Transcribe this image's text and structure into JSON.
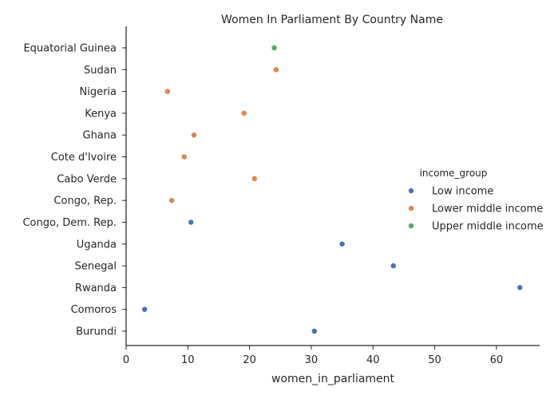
{
  "chart_data": {
    "type": "scatter",
    "title": "Women In Parliament By Country Name",
    "xlabel": "women_in_parliament",
    "ylabel": "",
    "xlim": [
      0,
      67
    ],
    "xticks": [
      0,
      10,
      20,
      30,
      40,
      50,
      60
    ],
    "grid": false,
    "legend_position": "right",
    "legend_title": "income_group",
    "categories": [
      "Equatorial Guinea",
      "Sudan",
      "Nigeria",
      "Kenya",
      "Ghana",
      "Cote d'Ivoire",
      "Cabo Verde",
      "Congo, Rep.",
      "Congo, Dem. Rep.",
      "Uganda",
      "Senegal",
      "Rwanda",
      "Comoros",
      "Burundi"
    ],
    "series": [
      {
        "name": "Low income",
        "color": "#4c72b0",
        "points": [
          {
            "y": "Congo, Dem. Rep.",
            "x": 10.5
          },
          {
            "y": "Uganda",
            "x": 35.0
          },
          {
            "y": "Senegal",
            "x": 43.3
          },
          {
            "y": "Rwanda",
            "x": 63.8
          },
          {
            "y": "Comoros",
            "x": 3.0
          },
          {
            "y": "Burundi",
            "x": 30.5
          }
        ]
      },
      {
        "name": "Lower middle income",
        "color": "#dd8452",
        "points": [
          {
            "y": "Sudan",
            "x": 24.3
          },
          {
            "y": "Nigeria",
            "x": 6.7
          },
          {
            "y": "Kenya",
            "x": 19.1
          },
          {
            "y": "Ghana",
            "x": 11.0
          },
          {
            "y": "Cote d'Ivoire",
            "x": 9.4
          },
          {
            "y": "Cabo Verde",
            "x": 20.8
          },
          {
            "y": "Congo, Rep.",
            "x": 7.4
          }
        ]
      },
      {
        "name": "Upper middle income",
        "color": "#55a868",
        "points": [
          {
            "y": "Equatorial Guinea",
            "x": 24.0
          }
        ]
      }
    ]
  }
}
